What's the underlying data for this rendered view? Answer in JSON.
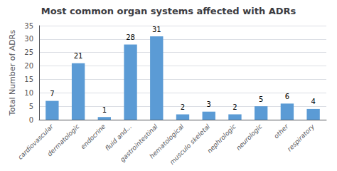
{
  "chart_data": {
    "type": "bar",
    "title": "Most common organ systems affected with ADRs",
    "ylabel": "Total Number of ADRs",
    "categories": [
      "cardiovascular",
      "dermatologic",
      "endocrine",
      "fluid and...",
      "gastrointestinal",
      "hematological",
      "musculo skeletal",
      "nephrologic",
      "neurologic",
      "other",
      "respiratory"
    ],
    "values": [
      7,
      21,
      1,
      28,
      31,
      2,
      3,
      2,
      5,
      6,
      4
    ],
    "color": "#5b9bd5",
    "ylim": [
      0,
      35
    ],
    "yticks": [
      0,
      5,
      10,
      15,
      20,
      25,
      30,
      35
    ],
    "grid": true,
    "data_labels": true
  }
}
